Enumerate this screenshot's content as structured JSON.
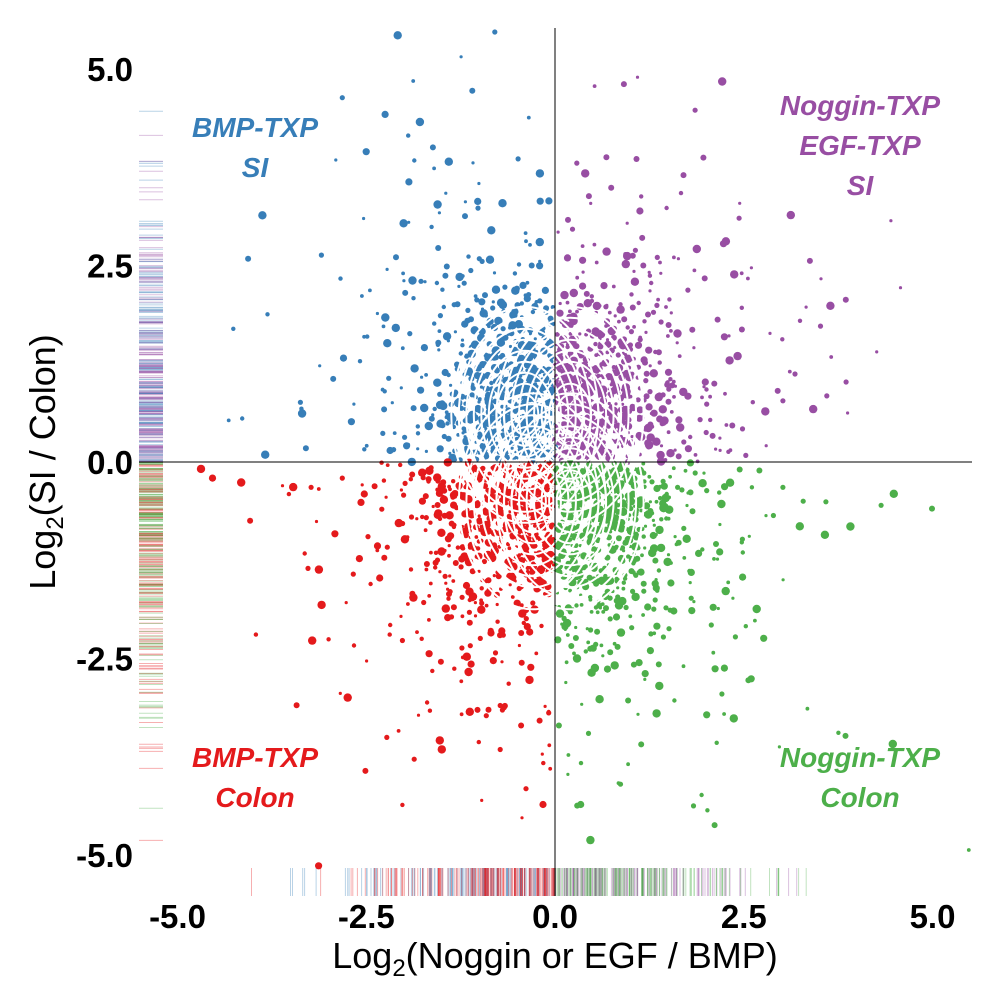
{
  "chart_data": {
    "type": "scatter",
    "xlabel": {
      "prefix": "Log",
      "sub": "2",
      "rest": "(Noggin or EGF / BMP)"
    },
    "ylabel": {
      "prefix": "Log",
      "sub": "2",
      "rest": "(SI / Colon)"
    },
    "xlim": [
      -5.5,
      5.5
    ],
    "ylim": [
      -5.4,
      5.5
    ],
    "x_ticks": [
      -5.0,
      -2.5,
      0.0,
      2.5,
      5.0
    ],
    "y_ticks": [
      5.0,
      2.5,
      0.0,
      -2.5,
      -5.0
    ],
    "x_tick_labels": [
      "-5.0",
      "-2.5",
      "0.0",
      "2.5",
      "5.0"
    ],
    "y_tick_labels": [
      "5.0",
      "2.5",
      "0.0",
      "-2.5",
      "-5.0"
    ],
    "reference_lines": {
      "x": 0,
      "y": 0
    },
    "grid": false,
    "rug": true,
    "density_contours": true,
    "series": [
      {
        "key": "bmp_si",
        "color": "#377eb8",
        "label_lines": [
          "BMP-TXP",
          "SI"
        ],
        "x_range": [
          -5.5,
          0
        ],
        "y_range": [
          0,
          5.5
        ],
        "center": [
          -0.4,
          0.6
        ]
      },
      {
        "key": "noggin_si",
        "color": "#984ea3",
        "label_lines": [
          "Noggin-TXP",
          "EGF-TXP",
          "SI"
        ],
        "x_range": [
          0,
          5.5
        ],
        "y_range": [
          0,
          5.5
        ],
        "center": [
          0.2,
          0.6
        ]
      },
      {
        "key": "bmp_colon",
        "color": "#e41a1c",
        "label_lines": [
          "BMP-TXP",
          "Colon"
        ],
        "x_range": [
          -5.5,
          0
        ],
        "y_range": [
          -5.4,
          0
        ],
        "center": [
          -0.3,
          -0.5
        ]
      },
      {
        "key": "noggin_colon",
        "color": "#4daf4a",
        "label_lines": [
          "Noggin-TXP",
          "Colon"
        ],
        "x_range": [
          0,
          5.5
        ],
        "y_range": [
          -5.4,
          0
        ],
        "center": [
          0.2,
          -0.5
        ]
      }
    ]
  }
}
